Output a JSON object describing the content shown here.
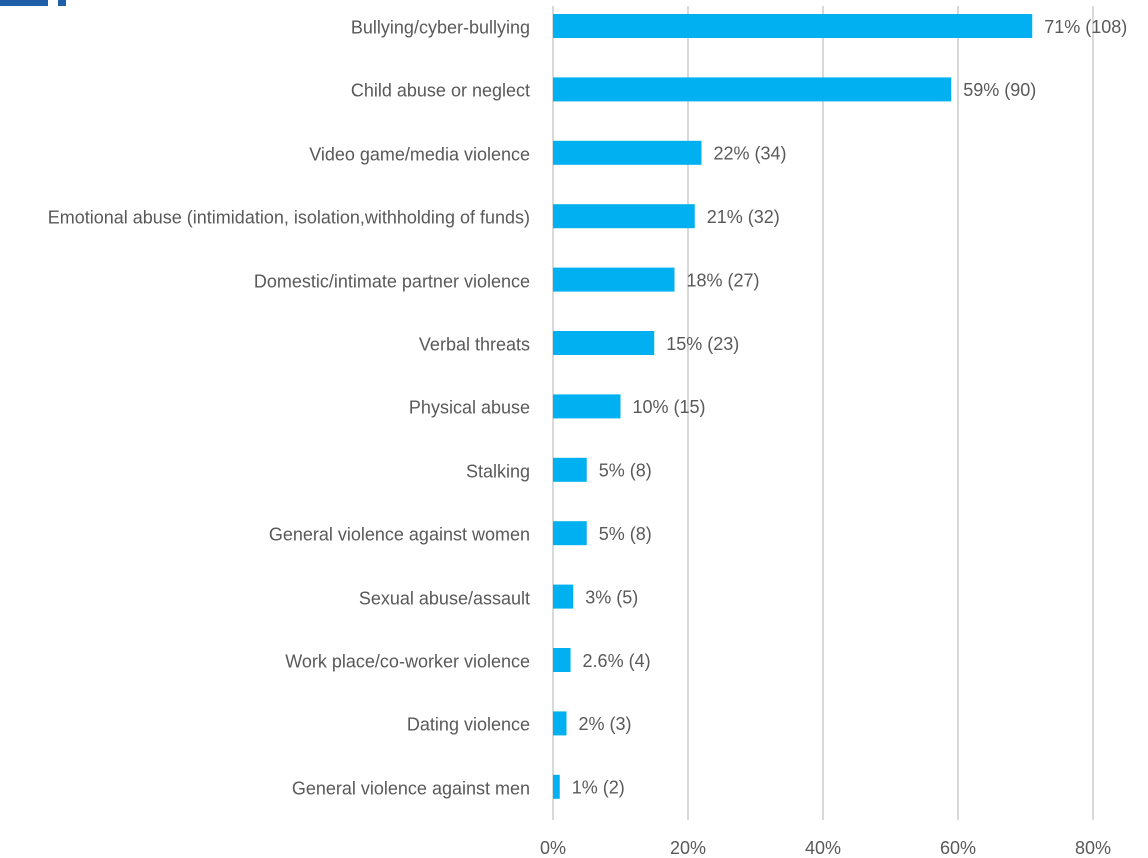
{
  "chart_data": {
    "type": "barh",
    "categories": [
      "Bullying/cyber-bullying",
      "Child abuse or neglect",
      "Video game/media violence",
      "Emotional abuse (intimidation, isolation,withholding of funds)",
      "Domestic/intimate partner violence",
      "Verbal threats",
      "Physical abuse",
      "Stalking",
      "General violence against women",
      "Sexual abuse/assault",
      "Work place/co-worker violence",
      "Dating violence",
      "General violence against men"
    ],
    "values": [
      71,
      59,
      22,
      21,
      18,
      15,
      10,
      5,
      5,
      3,
      2.6,
      2,
      1
    ],
    "value_labels": [
      "71% (108)",
      "59% (90)",
      "22% (34)",
      "21% (32)",
      "18% (27)",
      "15% (23)",
      "10% (15)",
      "5% (8)",
      "5% (8)",
      "3% (5)",
      "2.6% (4)",
      "2% (3)",
      "1% (2)"
    ],
    "color": "#00b0f0",
    "xlim": [
      0,
      80
    ],
    "xticks": [
      {
        "value": 0,
        "label": "0%"
      },
      {
        "value": 20,
        "label": "20%"
      },
      {
        "value": 40,
        "label": "40%"
      },
      {
        "value": 60,
        "label": "60%"
      },
      {
        "value": 80,
        "label": "80%"
      }
    ],
    "grid": true
  }
}
